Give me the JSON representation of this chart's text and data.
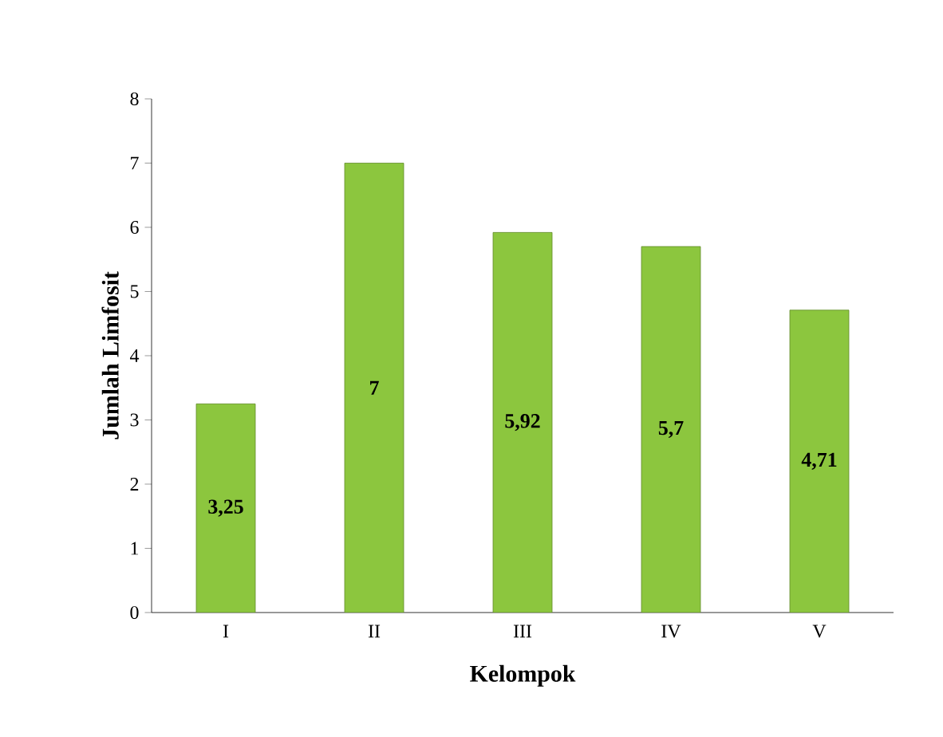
{
  "chart_data": {
    "type": "bar",
    "xlabel": "Kelompok",
    "ylabel": "Jumlah Limfosit",
    "categories": [
      "I",
      "II",
      "III",
      "IV",
      "V"
    ],
    "values": [
      3.25,
      7,
      5.92,
      5.7,
      4.71
    ],
    "value_labels": [
      "3,25",
      "7",
      "5,92",
      "5,7",
      "4,71"
    ],
    "color": "#8cc63e",
    "ylim": [
      0,
      8
    ],
    "yticks": [
      0,
      1,
      2,
      3,
      4,
      5,
      6,
      7,
      8
    ]
  }
}
